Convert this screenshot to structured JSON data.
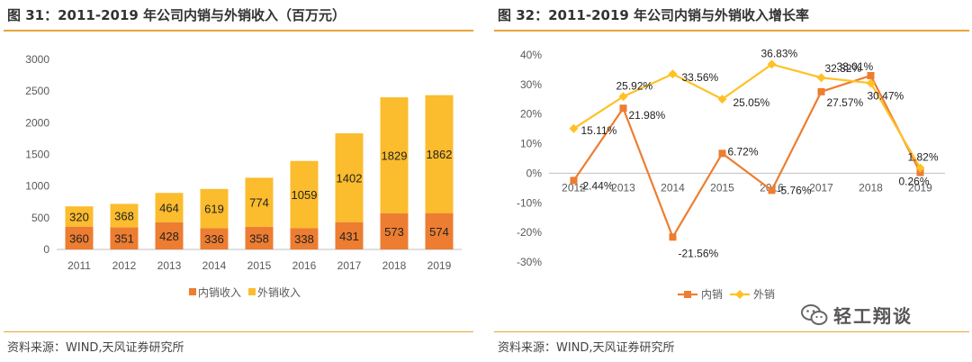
{
  "left": {
    "title": "图 31：2011-2019 年公司内销与外销收入（百万元）",
    "source": "资料来源：WIND,天风证券研究所"
  },
  "right": {
    "title": "图 32：2011-2019 年公司内销与外销收入增长率",
    "source": "资料来源：WIND,天风证券研究所"
  },
  "watermark": {
    "text": "轻工翔谈",
    "icon": "wechat-icon"
  },
  "colors": {
    "domestic": "#ed7d31",
    "foreign": "#fbbc2d",
    "line_foreign": "#ffc125",
    "axis": "#bfbfbf"
  },
  "chart_data": [
    {
      "type": "bar",
      "stacked": true,
      "categories": [
        "2011",
        "2012",
        "2013",
        "2014",
        "2015",
        "2016",
        "2017",
        "2018",
        "2019"
      ],
      "series": [
        {
          "name": "内销收入",
          "values": [
            360,
            351,
            428,
            336,
            358,
            338,
            431,
            573,
            574
          ]
        },
        {
          "name": "外销收入",
          "values": [
            320,
            368,
            464,
            619,
            774,
            1059,
            1402,
            1829,
            1862
          ]
        }
      ],
      "yticks": [
        "0",
        "500",
        "1000",
        "1500",
        "2000",
        "2500",
        "3000"
      ],
      "ylim": [
        0,
        3000
      ],
      "legend_position": "bottom"
    },
    {
      "type": "line",
      "categories": [
        "2012",
        "2013",
        "2014",
        "2015",
        "2016",
        "2017",
        "2018",
        "2019"
      ],
      "series": [
        {
          "name": "内销",
          "values": [
            -2.44,
            21.98,
            -21.56,
            6.72,
            -5.76,
            27.57,
            33.01,
            0.26
          ],
          "labels": [
            "-2.44%",
            "21.98%",
            "-21.56%",
            "6.72%",
            "-5.76%",
            "27.57%",
            "33.01%",
            "0.26%"
          ]
        },
        {
          "name": "外销",
          "values": [
            15.11,
            25.92,
            33.56,
            25.05,
            36.83,
            32.32,
            30.47,
            1.82
          ],
          "labels": [
            "15.11%",
            "25.92%",
            "33.56%",
            "25.05%",
            "36.83%",
            "32.32%",
            "30.47%",
            "1.82%"
          ]
        }
      ],
      "yticks": [
        "-30%",
        "-20%",
        "-10%",
        "0%",
        "10%",
        "20%",
        "30%",
        "40%"
      ],
      "ylim": [
        -30,
        40
      ],
      "legend_position": "bottom"
    }
  ]
}
